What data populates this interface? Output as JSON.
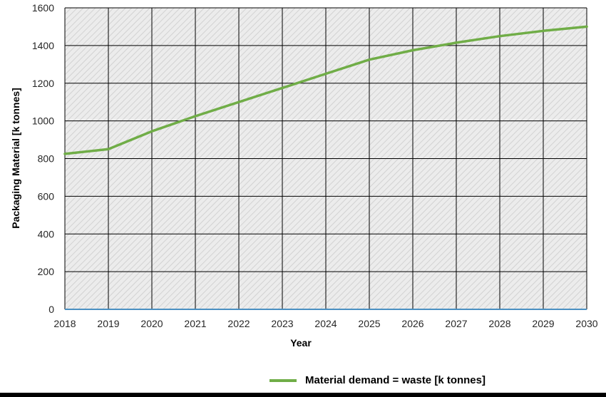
{
  "chart_data": {
    "type": "line",
    "title": "",
    "xlabel": "Year",
    "ylabel": "Packaging Material [k tonnes]",
    "xlim": [
      2018,
      2030
    ],
    "ylim": [
      0,
      1600
    ],
    "x_ticks": [
      "2018",
      "2019",
      "2020",
      "2021",
      "2022",
      "2023",
      "2024",
      "2025",
      "2026",
      "2027",
      "2028",
      "2029",
      "2030"
    ],
    "y_ticks": [
      "0",
      "200",
      "400",
      "600",
      "800",
      "1000",
      "1200",
      "1400",
      "1600"
    ],
    "grid": true,
    "legend_position": "bottom",
    "series": [
      {
        "name": "Material demand = waste [k tonnes]",
        "color": "#70ad47",
        "x": [
          2018,
          2019,
          2020,
          2021,
          2022,
          2023,
          2024,
          2025,
          2026,
          2027,
          2028,
          2029,
          2030
        ],
        "y": [
          825,
          850,
          945,
          1025,
          1100,
          1175,
          1250,
          1325,
          1375,
          1415,
          1450,
          1478,
          1500
        ]
      }
    ]
  },
  "colors": {
    "plot_background": "#e8e8e8",
    "gridline": "#000000",
    "x_axis_line": "#4a90c2"
  }
}
